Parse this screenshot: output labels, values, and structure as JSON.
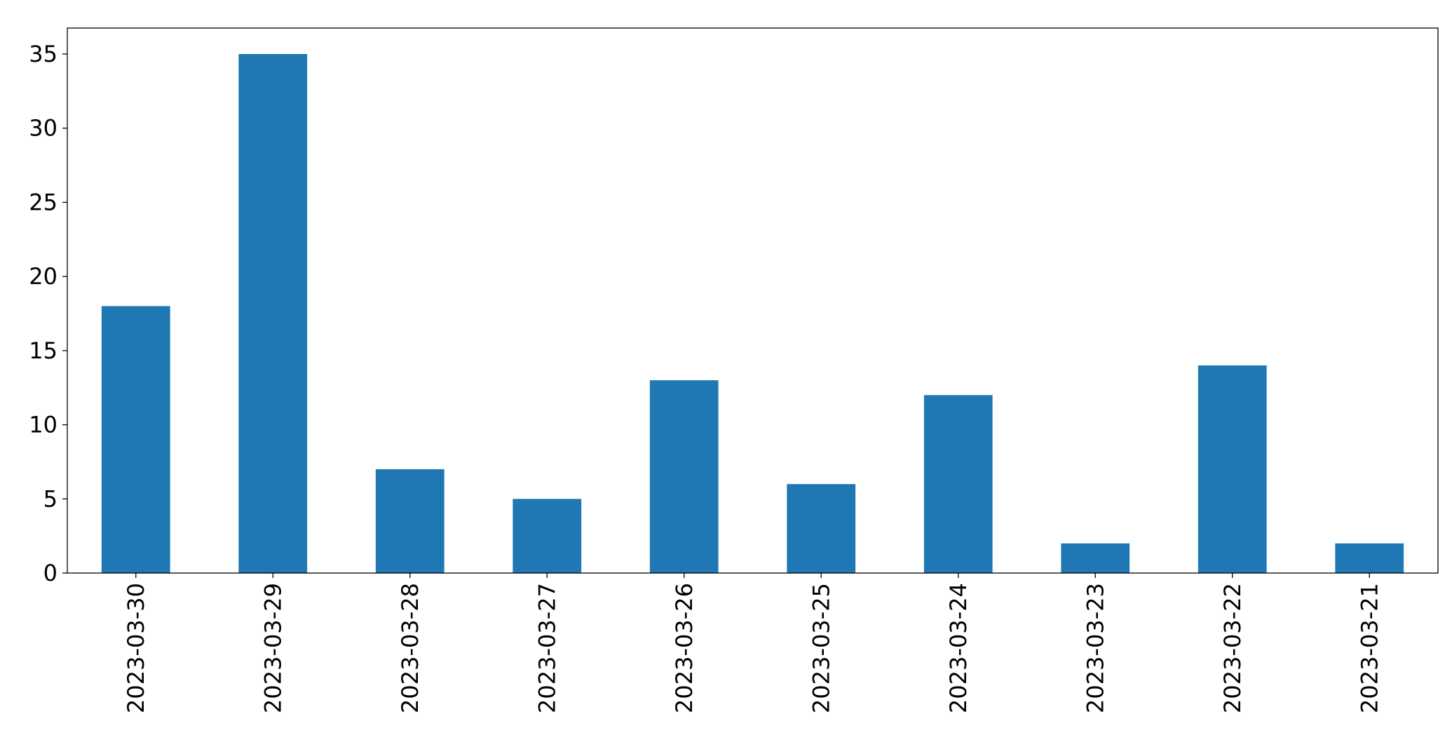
{
  "chart_data": {
    "type": "bar",
    "categories": [
      "2023-03-30",
      "2023-03-29",
      "2023-03-28",
      "2023-03-27",
      "2023-03-26",
      "2023-03-25",
      "2023-03-24",
      "2023-03-23",
      "2023-03-22",
      "2023-03-21"
    ],
    "values": [
      18,
      35,
      7,
      5,
      13,
      6,
      12,
      2,
      14,
      2
    ],
    "color": "#1f77b4",
    "ylim": [
      0,
      36.75
    ],
    "yticks": [
      0,
      5,
      10,
      15,
      20,
      25,
      30,
      35
    ],
    "grid": false
  }
}
